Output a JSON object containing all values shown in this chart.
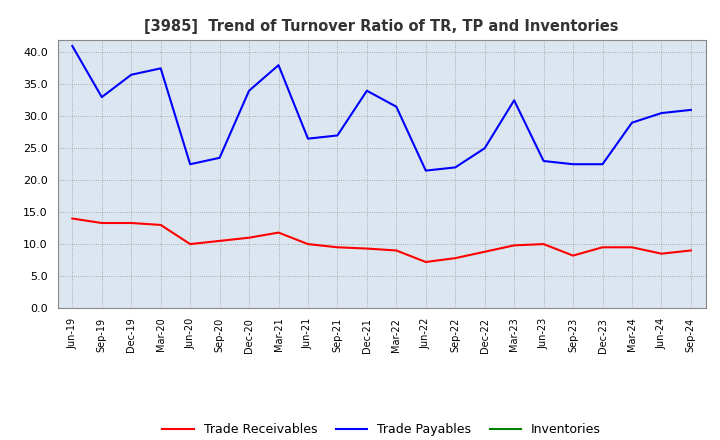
{
  "title": "[3985]  Trend of Turnover Ratio of TR, TP and Inventories",
  "x_labels": [
    "Jun-19",
    "Sep-19",
    "Dec-19",
    "Mar-20",
    "Jun-20",
    "Sep-20",
    "Dec-20",
    "Mar-21",
    "Jun-21",
    "Sep-21",
    "Dec-21",
    "Mar-22",
    "Jun-22",
    "Sep-22",
    "Dec-22",
    "Mar-23",
    "Jun-23",
    "Sep-23",
    "Dec-23",
    "Mar-24",
    "Jun-24",
    "Sep-24"
  ],
  "trade_receivables": [
    14.0,
    13.3,
    13.3,
    13.0,
    10.0,
    10.5,
    11.0,
    11.8,
    10.0,
    9.5,
    9.3,
    9.0,
    7.2,
    7.8,
    8.8,
    9.8,
    10.0,
    8.2,
    9.5,
    9.5,
    8.5,
    9.0
  ],
  "trade_payables": [
    41.0,
    33.0,
    36.5,
    37.5,
    22.5,
    23.5,
    34.0,
    38.0,
    26.5,
    27.0,
    34.0,
    31.5,
    21.5,
    22.0,
    25.0,
    32.5,
    23.0,
    22.5,
    22.5,
    29.0,
    30.5,
    31.0
  ],
  "inventories": [
    null,
    null,
    null,
    null,
    null,
    null,
    null,
    null,
    null,
    null,
    null,
    null,
    null,
    null,
    null,
    null,
    null,
    null,
    null,
    null,
    null,
    null
  ],
  "tr_color": "#ff0000",
  "tp_color": "#0000ff",
  "inv_color": "#008000",
  "ylim": [
    0.0,
    42.0
  ],
  "yticks": [
    0.0,
    5.0,
    10.0,
    15.0,
    20.0,
    25.0,
    30.0,
    35.0,
    40.0
  ],
  "bg_color": "#ffffff",
  "plot_bg_color": "#dce6f0",
  "grid_color": "#999999",
  "legend_labels": [
    "Trade Receivables",
    "Trade Payables",
    "Inventories"
  ],
  "title_color": "#333333"
}
